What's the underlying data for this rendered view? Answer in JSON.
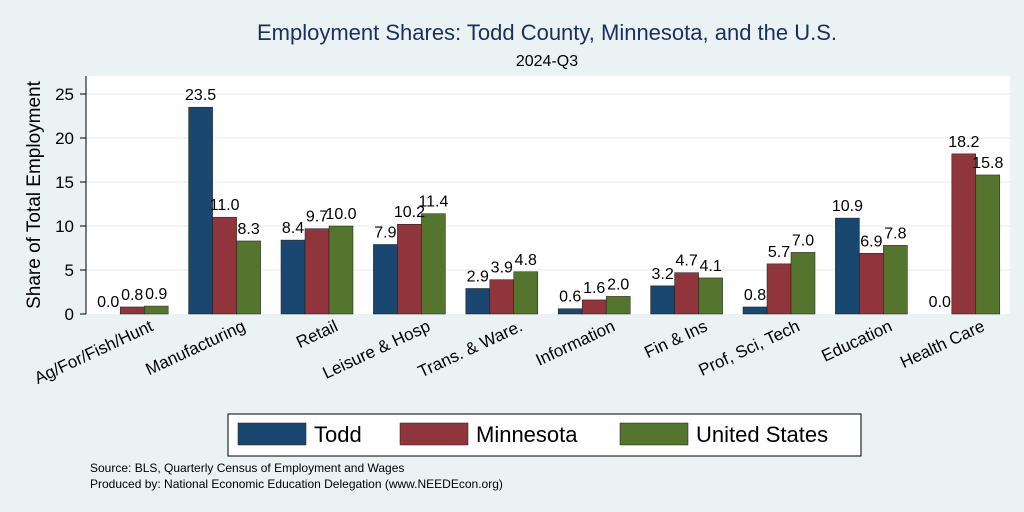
{
  "chart_data": {
    "type": "bar",
    "title": "Employment Shares: Todd County, Minnesota, and the U.S.",
    "subtitle": "2024-Q3",
    "xlabel": "",
    "ylabel": "Share of Total Employment",
    "ylim": [
      0,
      27
    ],
    "yticks": [
      0,
      5,
      10,
      15,
      20,
      25
    ],
    "grid": true,
    "legend_position": "bottom",
    "categories": [
      "Ag/For/Fish/Hunt",
      "Manufacturing",
      "Retail",
      "Leisure & Hosp",
      "Trans. & Ware.",
      "Information",
      "Fin & Ins",
      "Prof, Sci, Tech",
      "Education",
      "Health Care"
    ],
    "series": [
      {
        "name": "Todd",
        "color": "#1a476f",
        "values": [
          0.0,
          23.5,
          8.4,
          7.9,
          2.9,
          0.6,
          3.2,
          0.8,
          10.9,
          0.0
        ],
        "labels": [
          "0.0",
          "23.5",
          "8.4",
          "7.9",
          "2.9",
          "0.6",
          "3.2",
          "0.8",
          "10.9",
          "0.0"
        ]
      },
      {
        "name": "Minnesota",
        "color": "#90353b",
        "values": [
          0.8,
          11.0,
          9.7,
          10.2,
          3.9,
          1.6,
          4.7,
          5.7,
          6.9,
          18.2
        ],
        "labels": [
          "0.8",
          "11.0",
          "9.7",
          "10.2",
          "3.9",
          "1.6",
          "4.7",
          "5.7",
          "6.9",
          "18.2"
        ]
      },
      {
        "name": "United States",
        "color": "#55752f",
        "values": [
          0.9,
          8.3,
          10.0,
          11.4,
          4.8,
          2.0,
          4.1,
          7.0,
          7.8,
          15.8
        ],
        "labels": [
          "0.9",
          "8.3",
          "10.0",
          "11.4",
          "4.8",
          "2.0",
          "4.1",
          "7.0",
          "7.8",
          "15.8"
        ]
      }
    ]
  },
  "notes": {
    "source": "Source: BLS, Quarterly Census of Employment and Wages",
    "produced_by": "Produced by: National Economic Education Delegation (www.NEEDEcon.org)"
  }
}
